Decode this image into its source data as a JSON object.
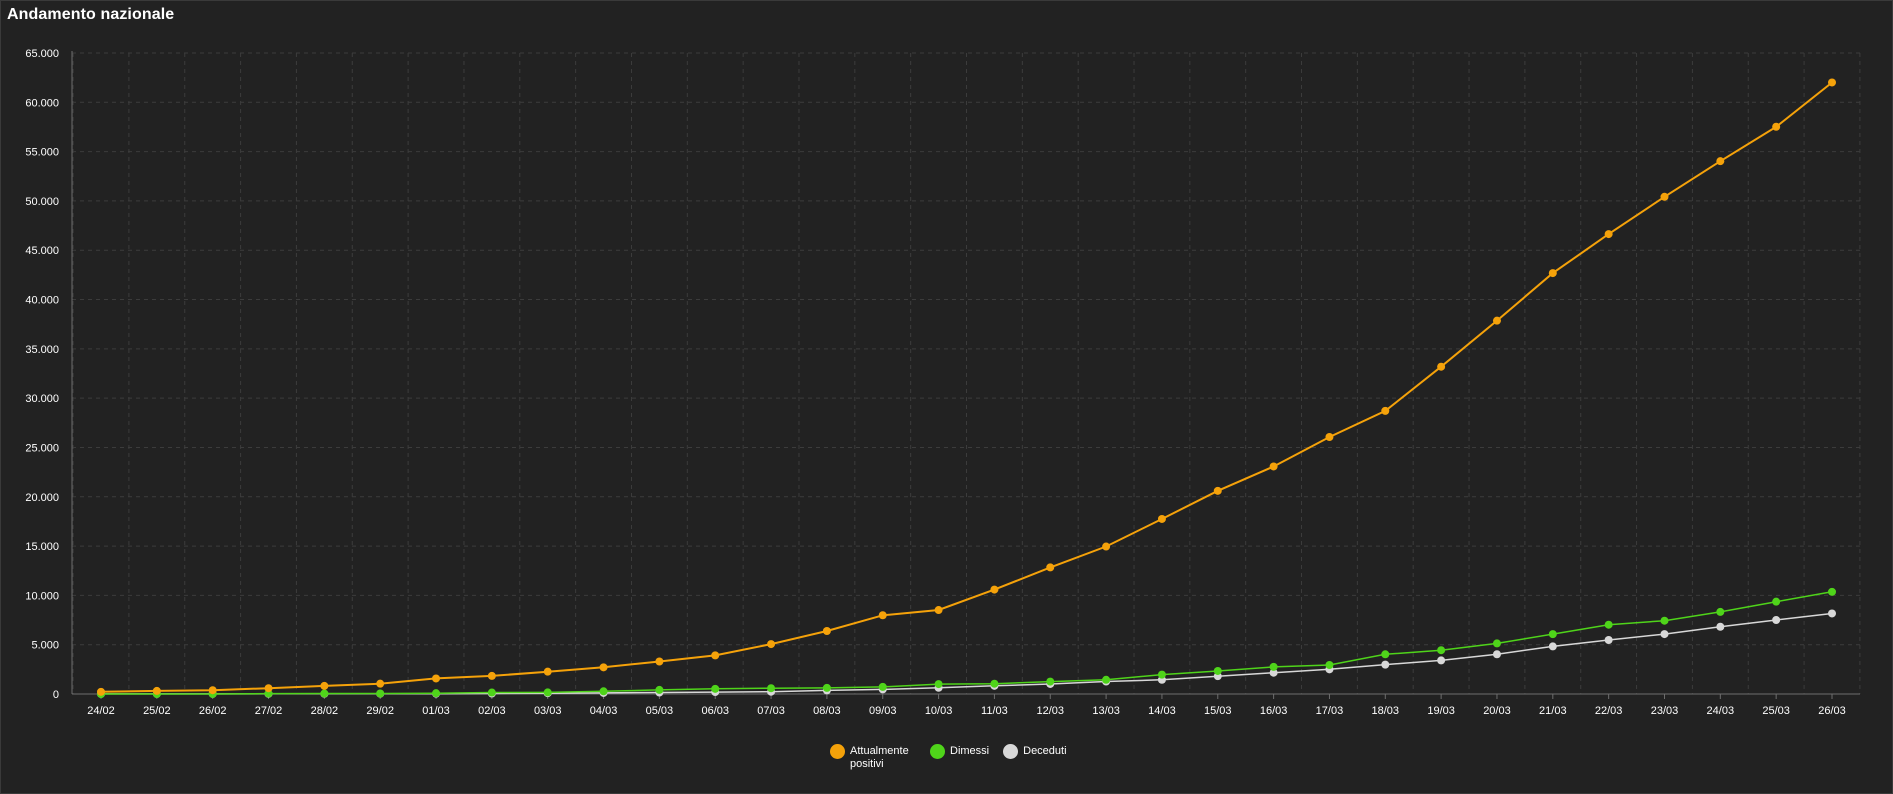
{
  "header": {
    "title": "Andamento nazionale"
  },
  "colors": {
    "background": "#222222",
    "grid": "#3c3c3c",
    "axis": "#6e6e6e",
    "text": "#ffffff"
  },
  "chart_data": {
    "type": "line",
    "title": "",
    "xlabel": "",
    "ylabel": "",
    "ylim": [
      0,
      65000
    ],
    "y_ticks": [
      0,
      5000,
      10000,
      15000,
      20000,
      25000,
      30000,
      35000,
      40000,
      45000,
      50000,
      55000,
      60000,
      65000
    ],
    "y_tick_labels": [
      "0",
      "5.000",
      "10.000",
      "15.000",
      "20.000",
      "25.000",
      "30.000",
      "35.000",
      "40.000",
      "45.000",
      "50.000",
      "55.000",
      "60.000",
      "65.000"
    ],
    "grid": true,
    "legend_position": "bottom",
    "categories": [
      "24/02",
      "25/02",
      "26/02",
      "27/02",
      "28/02",
      "29/02",
      "01/03",
      "02/03",
      "03/03",
      "04/03",
      "05/03",
      "06/03",
      "07/03",
      "08/03",
      "09/03",
      "10/03",
      "11/03",
      "12/03",
      "13/03",
      "14/03",
      "15/03",
      "16/03",
      "17/03",
      "18/03",
      "19/03",
      "20/03",
      "21/03",
      "22/03",
      "23/03",
      "24/03",
      "25/03",
      "26/03"
    ],
    "series": [
      {
        "name": "Attualmente positivi",
        "color": "#f5a20a",
        "values": [
          221,
          311,
          385,
          588,
          821,
          1049,
          1577,
          1835,
          2263,
          2706,
          3296,
          3916,
          5061,
          6387,
          7985,
          8514,
          10590,
          12839,
          14955,
          17750,
          20603,
          23073,
          26062,
          28710,
          33190,
          37860,
          42681,
          46638,
          50418,
          54030,
          57521,
          62013
        ]
      },
      {
        "name": "Dimessi",
        "color": "#4fd41a",
        "values": [
          1,
          1,
          3,
          45,
          46,
          50,
          83,
          149,
          160,
          276,
          414,
          523,
          589,
          622,
          724,
          1004,
          1045,
          1258,
          1439,
          1966,
          2335,
          2749,
          2941,
          4025,
          4440,
          5129,
          6072,
          7024,
          7432,
          8326,
          9362,
          10361
        ]
      },
      {
        "name": "Deceduti",
        "color": "#d8d8d8",
        "values": [
          7,
          10,
          12,
          17,
          21,
          29,
          34,
          52,
          79,
          107,
          148,
          197,
          233,
          366,
          463,
          631,
          827,
          1016,
          1266,
          1441,
          1809,
          2158,
          2503,
          2978,
          3405,
          4032,
          4825,
          5476,
          6077,
          6820,
          7503,
          8165
        ]
      }
    ]
  }
}
